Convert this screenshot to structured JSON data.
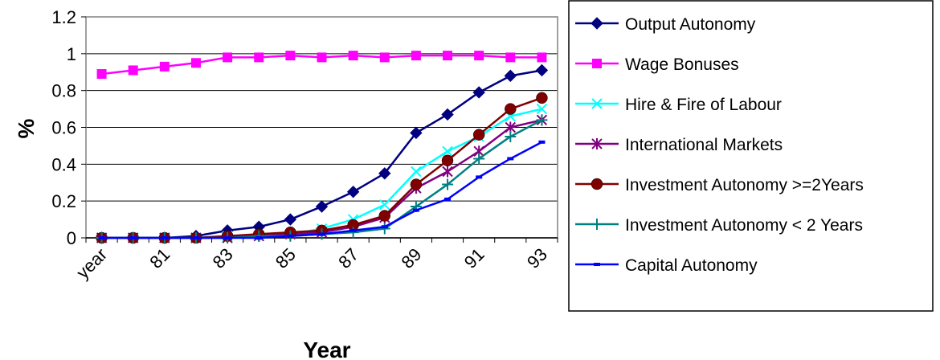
{
  "chart_data": {
    "type": "line",
    "title": "",
    "xlabel": "Year",
    "ylabel": "%",
    "x_tick_labels": [
      "year",
      "81",
      "83",
      "85",
      "87",
      "89",
      "91",
      "93"
    ],
    "x": [
      "year",
      "80",
      "81",
      "82",
      "83",
      "84",
      "85",
      "86",
      "87",
      "88",
      "89",
      "90",
      "91",
      "92",
      "93"
    ],
    "y_ticks": [
      "0",
      "0.2",
      "0.4",
      "0.6",
      "0.8",
      "1",
      "1.2"
    ],
    "ylim": [
      0,
      1.2
    ],
    "grid": true,
    "legend_position": "right",
    "series": [
      {
        "name": "Output Autonomy",
        "color": "#000080",
        "marker": "diamond",
        "values": [
          0,
          0,
          0,
          0.01,
          0.04,
          0.06,
          0.1,
          0.17,
          0.25,
          0.35,
          0.57,
          0.67,
          0.79,
          0.88,
          0.91
        ]
      },
      {
        "name": "Wage Bonuses",
        "color": "#FF00FF",
        "marker": "square",
        "values": [
          0.89,
          0.91,
          0.93,
          0.95,
          0.98,
          0.98,
          0.99,
          0.98,
          0.99,
          0.98,
          0.99,
          0.99,
          0.99,
          0.98,
          0.98
        ]
      },
      {
        "name": "Hire & Fire of Labour",
        "color": "#00FFFF",
        "marker": "x",
        "values": [
          0,
          0,
          0,
          0,
          0.01,
          0.01,
          0.02,
          0.05,
          0.1,
          0.18,
          0.36,
          0.47,
          0.55,
          0.66,
          0.7
        ]
      },
      {
        "name": "International Markets",
        "color": "#800080",
        "marker": "star",
        "values": [
          0,
          0,
          0,
          0,
          0,
          0.01,
          0.02,
          0.03,
          0.06,
          0.11,
          0.27,
          0.36,
          0.47,
          0.6,
          0.64
        ]
      },
      {
        "name": "Investment Autonomy >=2Years",
        "color": "#800000",
        "marker": "circle",
        "values": [
          0,
          0,
          0,
          0,
          0.01,
          0.02,
          0.03,
          0.04,
          0.07,
          0.12,
          0.29,
          0.42,
          0.56,
          0.7,
          0.76
        ]
      },
      {
        "name": "Investment Autonomy < 2 Years",
        "color": "#008080",
        "marker": "plus",
        "values": [
          0,
          0,
          0,
          0,
          0,
          0.01,
          0.01,
          0.02,
          0.03,
          0.05,
          0.17,
          0.29,
          0.43,
          0.55,
          0.64
        ]
      },
      {
        "name": "Capital Autonomy",
        "color": "#0000FF",
        "marker": "dash",
        "values": [
          0,
          0,
          0,
          0,
          0,
          0,
          0.01,
          0.02,
          0.04,
          0.06,
          0.15,
          0.21,
          0.33,
          0.43,
          0.52
        ]
      }
    ]
  }
}
